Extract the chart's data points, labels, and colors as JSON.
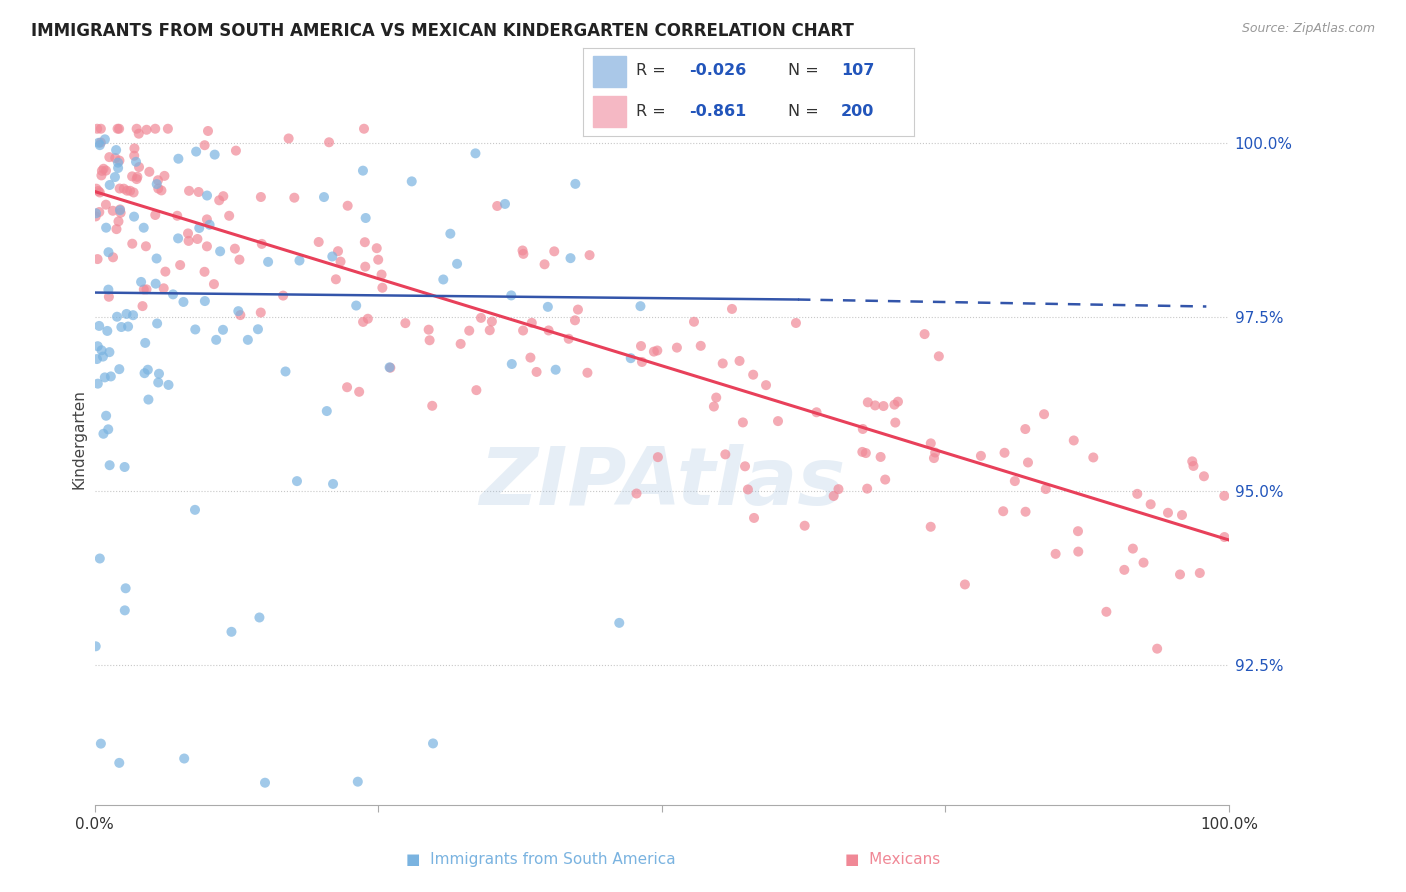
{
  "title": "IMMIGRANTS FROM SOUTH AMERICA VS MEXICAN KINDERGARTEN CORRELATION CHART",
  "source": "Source: ZipAtlas.com",
  "ylabel": "Kindergarten",
  "ytick_labels": [
    "92.5%",
    "95.0%",
    "97.5%",
    "100.0%"
  ],
  "ytick_values": [
    0.925,
    0.95,
    0.975,
    1.0
  ],
  "watermark": "ZIPAtlas",
  "blue_color": "#7ab3e0",
  "pink_color": "#f08896",
  "blue_line_color": "#3355aa",
  "pink_line_color": "#e8405a",
  "background_color": "#ffffff",
  "grid_color": "#c8c8c8",
  "title_fontsize": 12,
  "seed": 42,
  "blue_N": 107,
  "pink_N": 200,
  "blue_R": -0.026,
  "pink_R": -0.861,
  "x_range": [
    0.0,
    1.0
  ],
  "y_range": [
    0.905,
    1.01
  ]
}
